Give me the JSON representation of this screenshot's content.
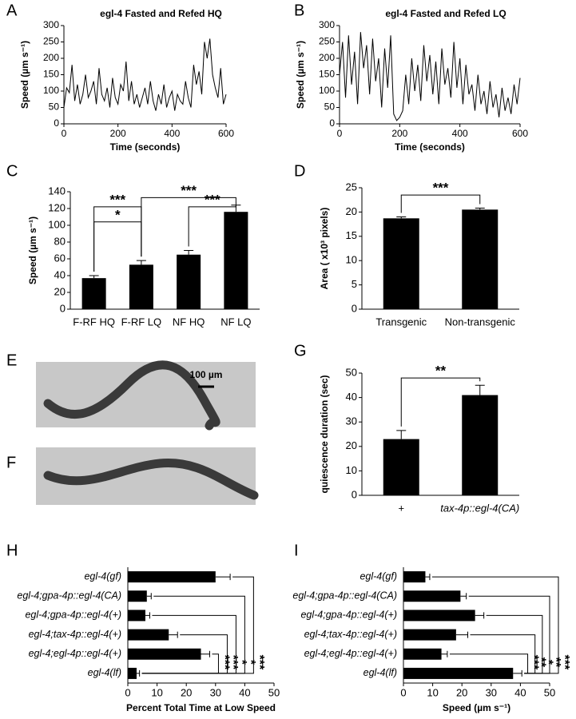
{
  "chart_data": [
    {
      "type": "line",
      "panel_label": "A",
      "title": "egl-4 Fasted and Refed HQ",
      "x_label": "Time (seconds)",
      "y_label": "Speed (µm s⁻¹)",
      "x": [
        0,
        10,
        20,
        30,
        40,
        50,
        60,
        70,
        80,
        90,
        100,
        110,
        120,
        130,
        140,
        150,
        160,
        170,
        180,
        190,
        200,
        210,
        220,
        230,
        240,
        250,
        260,
        270,
        280,
        290,
        300,
        310,
        320,
        330,
        340,
        350,
        360,
        370,
        380,
        390,
        400,
        410,
        420,
        430,
        440,
        450,
        460,
        470,
        480,
        490,
        500,
        510,
        520,
        530,
        540,
        550,
        560,
        570,
        580,
        590,
        600
      ],
      "values": [
        50,
        110,
        95,
        180,
        70,
        120,
        60,
        90,
        150,
        80,
        100,
        130,
        60,
        170,
        90,
        70,
        110,
        50,
        140,
        80,
        60,
        120,
        100,
        190,
        70,
        130,
        60,
        90,
        50,
        80,
        110,
        60,
        130,
        70,
        40,
        90,
        60,
        120,
        50,
        80,
        100,
        40,
        90,
        70,
        60,
        130,
        80,
        50,
        180,
        120,
        160,
        90,
        250,
        200,
        260,
        150,
        110,
        80,
        170,
        60,
        90
      ],
      "color": "#000000",
      "xlim": [
        0,
        600
      ],
      "xticks": [
        0,
        200,
        400,
        600
      ],
      "ylim": [
        0,
        300
      ],
      "yticks": [
        0,
        50,
        100,
        150,
        200,
        250,
        300
      ]
    },
    {
      "type": "line",
      "panel_label": "B",
      "title": "egl-4 Fasted and Refed LQ",
      "x_label": "Time (seconds)",
      "y_label": "Speed (µm s⁻¹)",
      "x": [
        0,
        10,
        20,
        30,
        40,
        50,
        60,
        70,
        80,
        90,
        100,
        110,
        120,
        130,
        140,
        150,
        160,
        170,
        180,
        190,
        200,
        210,
        220,
        230,
        240,
        250,
        260,
        270,
        280,
        290,
        300,
        310,
        320,
        330,
        340,
        350,
        360,
        370,
        380,
        390,
        400,
        410,
        420,
        430,
        440,
        450,
        460,
        470,
        480,
        490,
        500,
        510,
        520,
        530,
        540,
        550,
        560,
        570,
        580,
        590,
        600
      ],
      "values": [
        150,
        250,
        80,
        270,
        120,
        220,
        60,
        280,
        170,
        240,
        90,
        260,
        130,
        200,
        50,
        230,
        110,
        270,
        30,
        10,
        20,
        40,
        150,
        60,
        200,
        100,
        180,
        70,
        240,
        130,
        210,
        90,
        190,
        60,
        230,
        120,
        170,
        80,
        250,
        110,
        200,
        60,
        180,
        90,
        120,
        40,
        150,
        60,
        100,
        30,
        130,
        50,
        90,
        20,
        110,
        40,
        80,
        30,
        120,
        60,
        140
      ],
      "color": "#000000",
      "xlim": [
        0,
        600
      ],
      "xticks": [
        0,
        200,
        400,
        600
      ],
      "ylim": [
        0,
        300
      ],
      "yticks": [
        0,
        50,
        100,
        150,
        200,
        250,
        300
      ]
    },
    {
      "type": "bar",
      "panel_label": "C",
      "y_label": "Speed (µm s⁻¹)",
      "categories": [
        "F-RF HQ",
        "F-RF LQ",
        "NF HQ",
        "NF LQ"
      ],
      "values": [
        37,
        53,
        65,
        116
      ],
      "errors": [
        3,
        5,
        5,
        8
      ],
      "color": "#000000",
      "ylim": [
        0,
        140
      ],
      "yticks": [
        0,
        20,
        40,
        60,
        80,
        100,
        120,
        140
      ],
      "annotations": [
        "***",
        "*",
        "***",
        "***"
      ]
    },
    {
      "type": "bar",
      "panel_label": "D",
      "y_label": "Area ( x10³ pixels)",
      "categories": [
        "Transgenic",
        "Non-transgenic"
      ],
      "values": [
        18.7,
        20.5
      ],
      "errors": [
        0.3,
        0.3
      ],
      "color": "#000000",
      "ylim": [
        0,
        25
      ],
      "yticks": [
        0,
        5,
        10,
        15,
        20,
        25
      ],
      "annotations": [
        "***"
      ]
    },
    {
      "type": "bar",
      "panel_label": "G",
      "y_label": "quiescence duration (sec)",
      "categories": [
        "+",
        "tax-4p::egl-4(CA)"
      ],
      "values": [
        23,
        41
      ],
      "errors": [
        3.5,
        4
      ],
      "color": "#000000",
      "ylim": [
        0,
        50
      ],
      "yticks": [
        0,
        10,
        20,
        30,
        40,
        50
      ],
      "annotations": [
        "**"
      ]
    },
    {
      "type": "hbar",
      "panel_label": "H",
      "x_label": "Percent Total Time at Low Speed",
      "categories": [
        "egl-4(gf)",
        "egl-4;gpa-4p::egl-4(CA)",
        "egl-4;gpa-4p::egl-4(+)",
        "egl-4;tax-4p::egl-4(+)",
        "egl-4;egl-4p::egl-4(+)",
        "egl-4(lf)"
      ],
      "values": [
        30,
        6.5,
        6,
        14,
        25,
        3
      ],
      "errors": [
        5,
        1.5,
        1.5,
        3,
        3,
        1
      ],
      "color": "#000000",
      "xlim": [
        0,
        50
      ],
      "xticks": [
        0,
        10,
        20,
        30,
        40,
        50
      ],
      "annotations": [
        "***",
        "*",
        "*",
        "***",
        "***"
      ]
    },
    {
      "type": "hbar",
      "panel_label": "I",
      "x_label": "Speed (µm s⁻¹)",
      "categories": [
        "egl-4(gf)",
        "egl-4;gpa-4p::egl-4(CA)",
        "egl-4;gpa-4p::egl-4(+)",
        "egl-4;tax-4p::egl-4(+)",
        "egl-4;egl-4p::egl-4(+)",
        "egl-4(lf)"
      ],
      "values": [
        7.5,
        19.5,
        24.5,
        18,
        13,
        37.5
      ],
      "errors": [
        1.5,
        2,
        3,
        4,
        2,
        3
      ],
      "color": "#000000",
      "xlim": [
        0,
        50
      ],
      "xticks": [
        0,
        10,
        20,
        30,
        40,
        50
      ],
      "annotations": [
        "***",
        "**",
        "*",
        "**",
        "***"
      ]
    }
  ],
  "images": [
    {
      "panel_label": "E",
      "scale_bar": "100 µm"
    },
    {
      "panel_label": "F"
    }
  ]
}
